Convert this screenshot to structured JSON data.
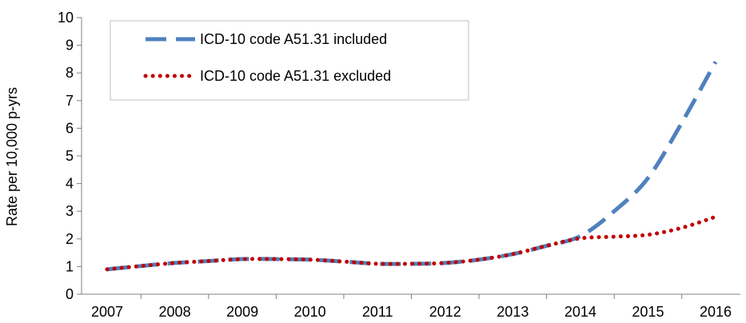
{
  "chart_data": {
    "type": "line",
    "title": "",
    "xlabel": "",
    "ylabel": "Rate per 10,000 p-yrs",
    "categories": [
      "2007",
      "2008",
      "2009",
      "2010",
      "2011",
      "2012",
      "2013",
      "2014",
      "2015",
      "2016"
    ],
    "x": [
      2007,
      2007.5,
      2008,
      2008.5,
      2009,
      2009.5,
      2010,
      2010.5,
      2011,
      2011.5,
      2012,
      2012.5,
      2013,
      2013.5,
      2014,
      2014.5,
      2015,
      2015.5,
      2016
    ],
    "ylim": [
      0,
      10
    ],
    "yticks": [
      "0",
      "1",
      "2",
      "3",
      "4",
      "5",
      "6",
      "7",
      "8",
      "9",
      "10"
    ],
    "grid": false,
    "legend_position": "top-left",
    "series": [
      {
        "name": "ICD-10 code A51.31 included",
        "color": "#4f81bd",
        "style": "dashed",
        "values": [
          0.9,
          1.02,
          1.13,
          1.2,
          1.27,
          1.27,
          1.25,
          1.18,
          1.1,
          1.1,
          1.13,
          1.25,
          1.45,
          1.75,
          2.1,
          3.0,
          4.2,
          6.2,
          8.4
        ]
      },
      {
        "name": "ICD-10 code A51.31 excluded",
        "color": "#c00000",
        "style": "dotted",
        "values": [
          0.9,
          1.02,
          1.13,
          1.2,
          1.27,
          1.27,
          1.25,
          1.18,
          1.1,
          1.1,
          1.13,
          1.25,
          1.45,
          1.75,
          2.02,
          2.08,
          2.15,
          2.4,
          2.8
        ]
      }
    ]
  }
}
